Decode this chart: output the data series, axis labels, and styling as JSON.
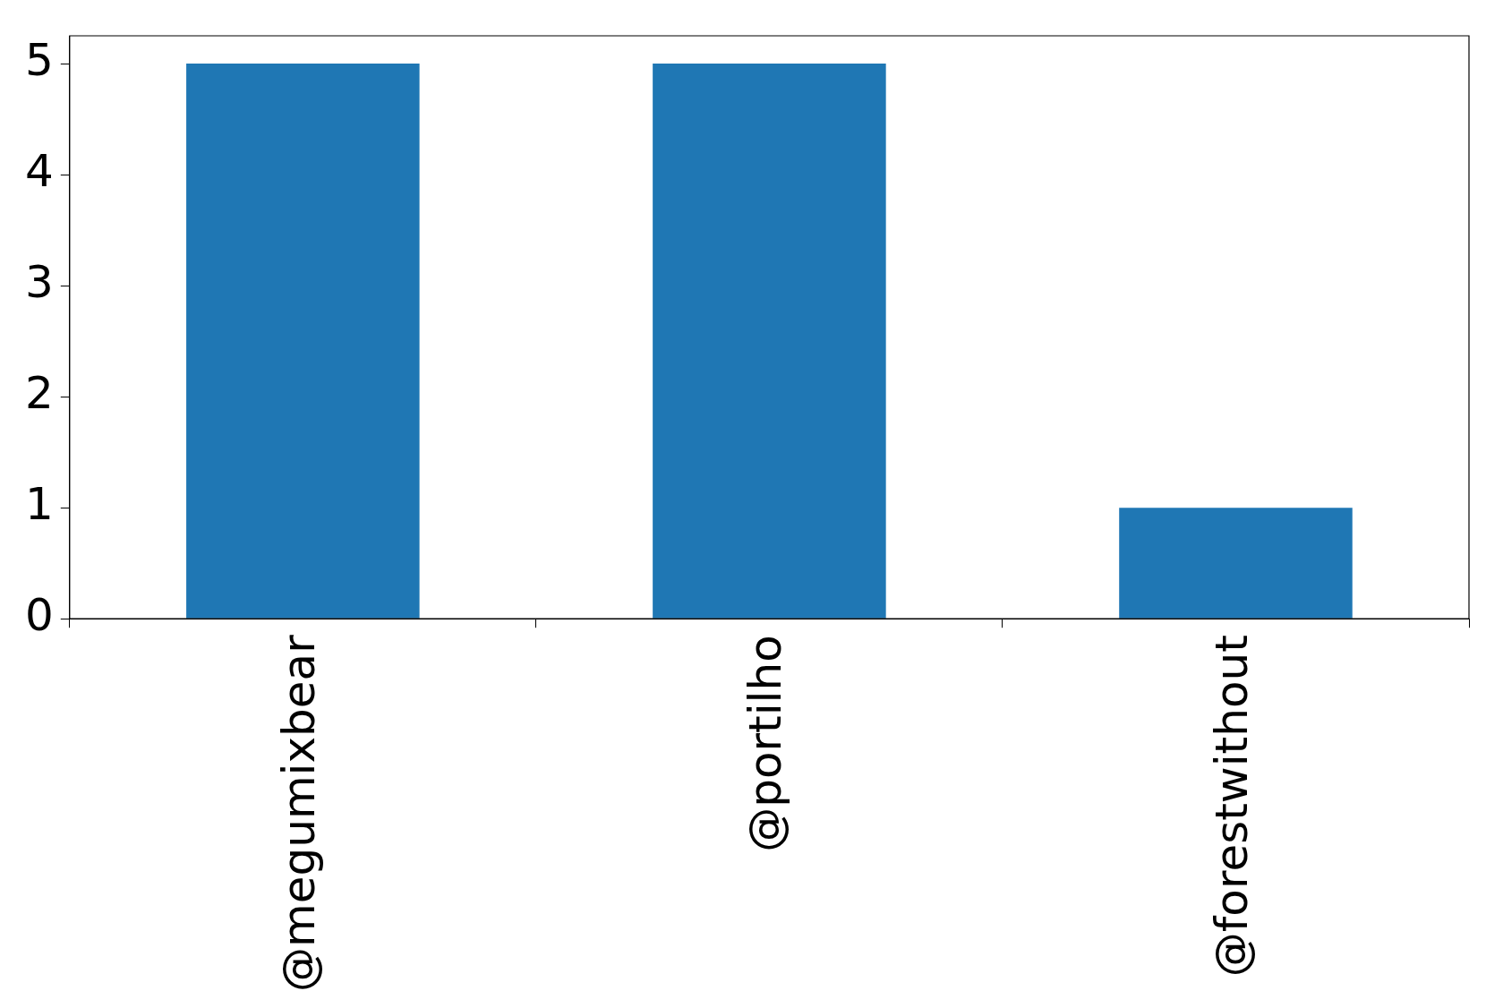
{
  "chart_data": {
    "type": "bar",
    "categories": [
      "@megumixbear",
      "@portilho",
      "@forestwithout"
    ],
    "values": [
      5,
      5,
      1
    ],
    "color": "#1f77b4",
    "ylim": [
      0,
      5.25
    ],
    "yticks": [
      0,
      1,
      2,
      3,
      4,
      5
    ],
    "grid": false,
    "legend": false
  }
}
